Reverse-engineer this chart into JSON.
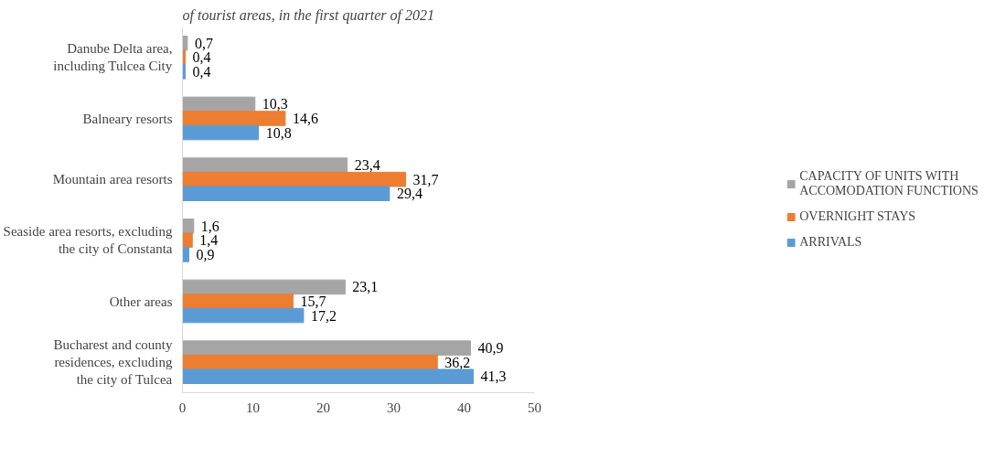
{
  "chart_data": {
    "type": "bar",
    "orientation": "horizontal",
    "title": "of tourist areas, in the first quarter of 2021",
    "categories": [
      "Danube Delta area,\nincluding Tulcea City",
      "Balneary resorts",
      "Mountain area resorts",
      "Seaside area resorts, excluding\nthe city of Constanta",
      "Other areas",
      "Bucharest and county\nresidences, excluding\nthe city of Tulcea"
    ],
    "series": [
      {
        "name": "CAPACITY OF UNITS WITH ACCOMODATION FUNCTIONS",
        "color": "#a5a5a5",
        "values": [
          0.7,
          10.3,
          23.4,
          1.6,
          23.1,
          40.9
        ],
        "value_labels": [
          "0,7",
          "10,3",
          "23,4",
          "1,6",
          "23,1",
          "40,9"
        ]
      },
      {
        "name": "OVERNIGHT STAYS",
        "color": "#ed7d31",
        "values": [
          0.4,
          14.6,
          31.7,
          1.4,
          15.7,
          36.2
        ],
        "value_labels": [
          "0,4",
          "14,6",
          "31,7",
          "1,4",
          "15,7",
          "36,2"
        ]
      },
      {
        "name": "ARRIVALS",
        "color": "#5b9bd5",
        "values": [
          0.4,
          10.8,
          29.4,
          0.9,
          17.2,
          41.3
        ],
        "value_labels": [
          "0,4",
          "10,8",
          "29,4",
          "0,9",
          "17,2",
          "41,3"
        ]
      }
    ],
    "xlim": [
      0,
      50
    ],
    "xticks": [
      0,
      10,
      20,
      30,
      40,
      50
    ],
    "grid": false,
    "legend": "right"
  }
}
